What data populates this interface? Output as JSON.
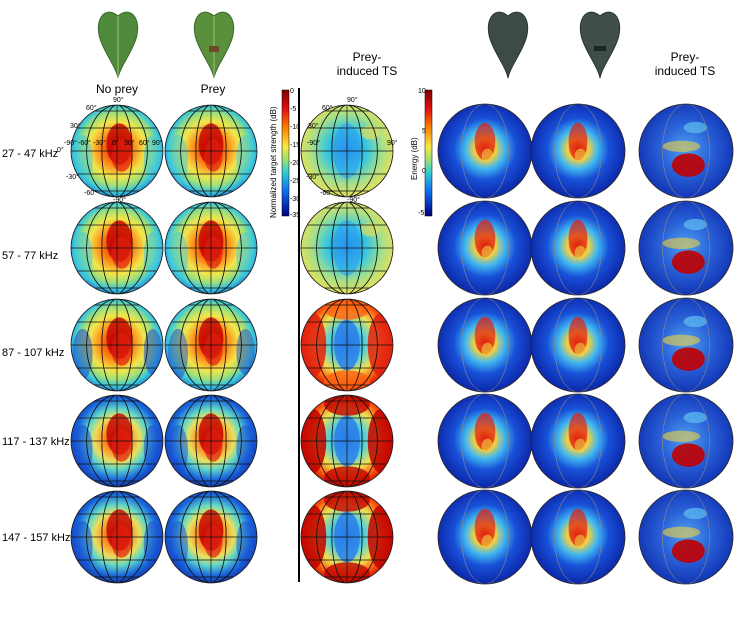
{
  "columns": {
    "no_prey": "No prey",
    "prey": "Prey",
    "prey_induced_line1": "Prey-",
    "prey_induced_line2": "induced TS"
  },
  "rows": [
    "27 - 47 kHz",
    "57 - 77 kHz",
    "87 - 107 kHz",
    "117 - 137 kHz",
    "147 - 157 kHz"
  ],
  "colorbar_left": {
    "label": "Normalized target strength (dB)",
    "ticks": [
      "0",
      "-5",
      "-10",
      "-15",
      "-20",
      "-25",
      "-30",
      "-35"
    ]
  },
  "colorbar_right": {
    "label": "Energy (dB)",
    "ticks": [
      "10",
      "5",
      "0",
      "-5"
    ]
  },
  "angle_labels": {
    "top": "90°",
    "bottom": "-90°",
    "lat_n60": "60°",
    "lat_n30": "30°",
    "lat_0": "0°",
    "lat_s30": "-30°",
    "lat_s60": "-60°",
    "lon_m90": "-90°",
    "lon_m60": "-60°",
    "lon_m30": "-30°",
    "lon_0": "0°",
    "lon_30": "30°",
    "lon_60": "60°",
    "lon_90": "90°"
  },
  "colors": {
    "divider": "#000000"
  }
}
